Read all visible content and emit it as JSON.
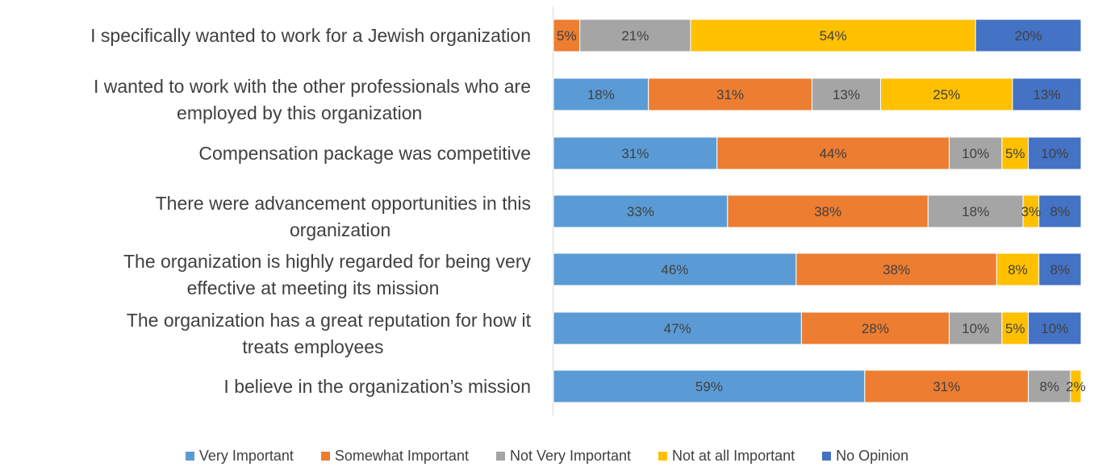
{
  "chart_data": {
    "type": "bar",
    "orientation": "horizontal",
    "stacked": true,
    "percent_stacked": true,
    "categories": [
      [
        "I specifically wanted to work for a Jewish organization"
      ],
      [
        "I wanted to work with the other professionals who are",
        "employed by this organization"
      ],
      [
        "Compensation package was competitive"
      ],
      [
        "There were advancement opportunities in this",
        "organization"
      ],
      [
        "The organization is highly regarded for being very",
        "effective at meeting its mission"
      ],
      [
        "The organization has a great reputation for how it",
        "treats employees"
      ],
      [
        "I believe in the organization’s mission"
      ]
    ],
    "series": [
      {
        "name": "Very Important",
        "color": "#5B9BD5",
        "values": [
          0,
          18,
          31,
          33,
          46,
          47,
          59
        ]
      },
      {
        "name": "Somewhat Important",
        "color": "#ED7D31",
        "values": [
          5,
          31,
          44,
          38,
          38,
          28,
          31
        ]
      },
      {
        "name": "Not Very Important",
        "color": "#A5A5A5",
        "values": [
          21,
          13,
          10,
          18,
          0,
          10,
          8
        ]
      },
      {
        "name": "Not at all Important",
        "color": "#FFC000",
        "values": [
          54,
          25,
          5,
          3,
          8,
          5,
          2
        ]
      },
      {
        "name": "No Opinion",
        "color": "#4472C4",
        "values": [
          20,
          13,
          10,
          8,
          8,
          10,
          0
        ]
      }
    ],
    "title": "",
    "xlabel": "",
    "ylabel": "",
    "xlim": [
      0,
      100
    ],
    "grid": false,
    "legend": "bottom"
  }
}
